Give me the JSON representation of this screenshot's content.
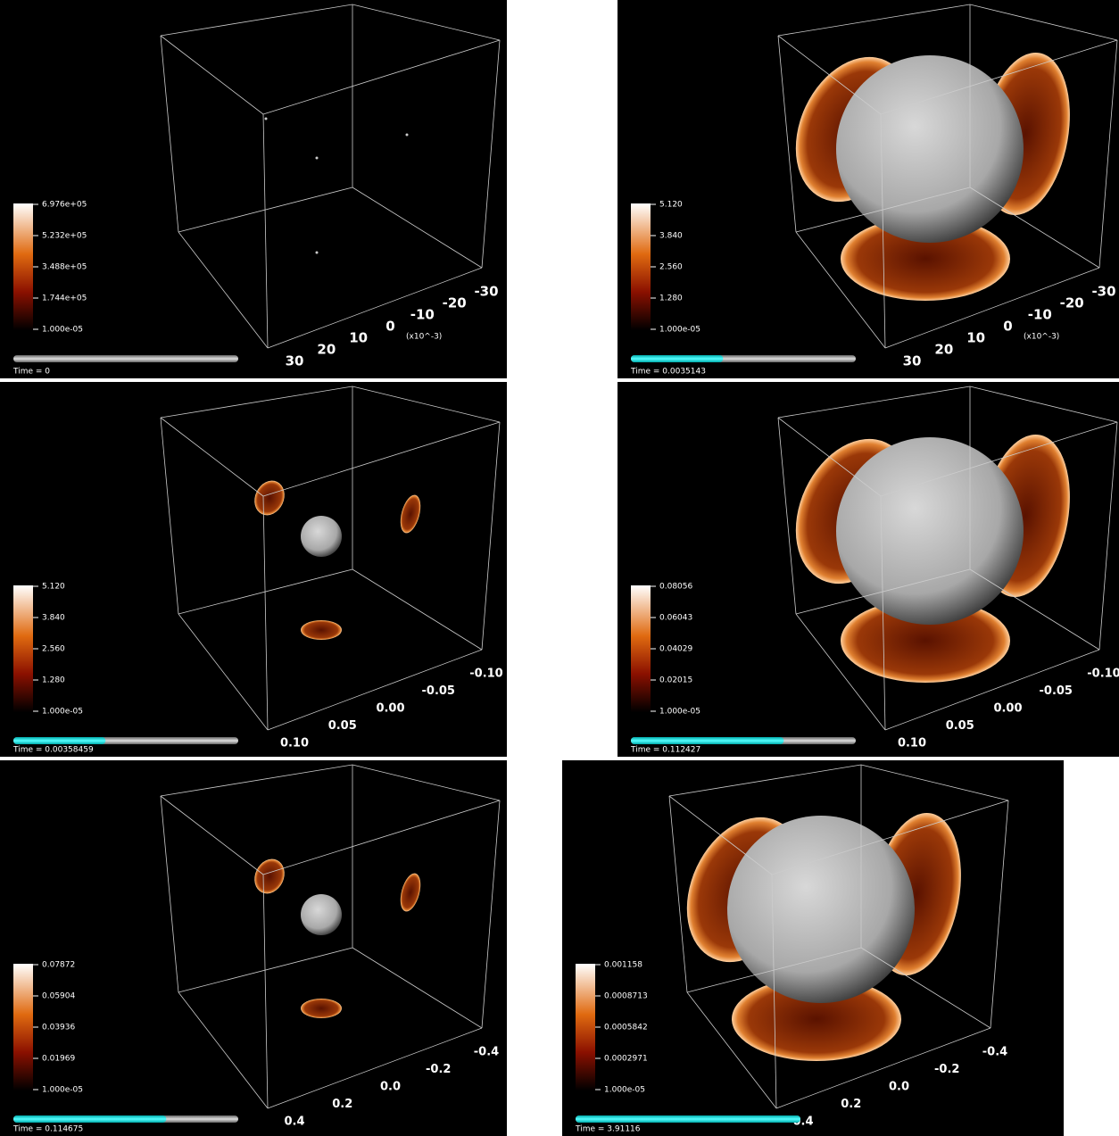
{
  "panels": [
    {
      "colorbar": [
        "6.976e+05",
        "5.232e+05",
        "3.488e+05",
        "1.744e+05",
        "1.000e-05"
      ],
      "axis_labels": [
        "30",
        "20",
        "10",
        "0",
        "-10",
        "-20",
        "-30"
      ],
      "axis_unit": "(x10^-3)",
      "time": "Time = 0"
    },
    {
      "colorbar": [
        "5.120",
        "3.840",
        "2.560",
        "1.280",
        "1.000e-05"
      ],
      "axis_labels": [
        "30",
        "20",
        "10",
        "0",
        "-10",
        "-20",
        "-30"
      ],
      "axis_unit": "(x10^-3)",
      "time": "Time = 0.0035143"
    },
    {
      "colorbar": [
        "5.120",
        "3.840",
        "2.560",
        "1.280",
        "1.000e-05"
      ],
      "axis_labels": [
        "0.10",
        "0.05",
        "0.00",
        "-0.05",
        "-0.10"
      ],
      "time": "Time = 0.00358459"
    },
    {
      "colorbar": [
        "0.08056",
        "0.06043",
        "0.04029",
        "0.02015",
        "1.000e-05"
      ],
      "axis_labels": [
        "0.10",
        "0.05",
        "0.00",
        "-0.05",
        "-0.10"
      ],
      "time": "Time = 0.112427"
    },
    {
      "colorbar": [
        "0.07872",
        "0.05904",
        "0.03936",
        "0.01969",
        "1.000e-05"
      ],
      "axis_labels": [
        "0.4",
        "0.2",
        "0.0",
        "-0.2",
        "-0.4"
      ],
      "time": "Time = 0.114675"
    },
    {
      "colorbar": [
        "0.001158",
        "0.0008713",
        "0.0005842",
        "0.0002971",
        "1.000e-05"
      ],
      "axis_labels": [
        "0.4",
        "0.2",
        "0.0",
        "-0.2",
        "-0.4"
      ],
      "time": "Time = 3.91116"
    }
  ]
}
